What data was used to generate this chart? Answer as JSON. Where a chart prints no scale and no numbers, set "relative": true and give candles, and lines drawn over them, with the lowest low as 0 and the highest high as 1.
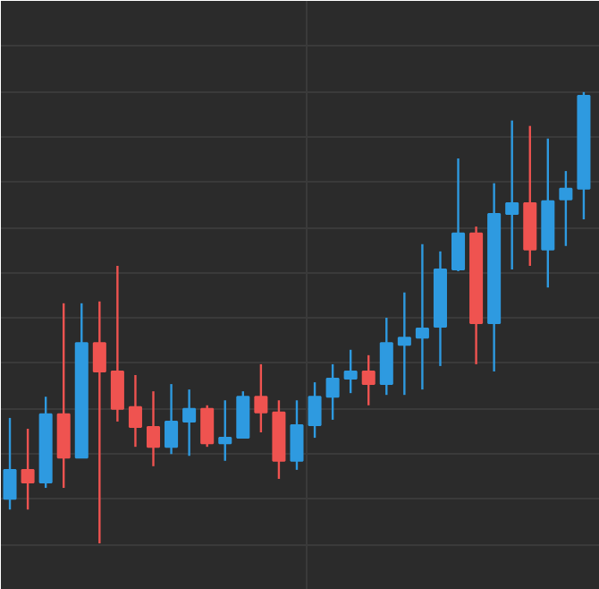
{
  "chart_data": {
    "type": "candlestick",
    "relative": true,
    "grid": true,
    "tick_labels": false,
    "categories": [
      null,
      null,
      null,
      null,
      null,
      null,
      null,
      null,
      null,
      null,
      null,
      null,
      null,
      null,
      null,
      null,
      null,
      null,
      null,
      null,
      null,
      null,
      null,
      null,
      null,
      null,
      null,
      null,
      null,
      null,
      null,
      null,
      null
    ],
    "ohlc": [
      [
        0.099,
        0.278,
        0.075,
        0.163
      ],
      [
        0.163,
        0.254,
        0.075,
        0.135
      ],
      [
        0.135,
        0.325,
        0.123,
        0.286
      ],
      [
        0.286,
        0.532,
        0.123,
        0.19
      ],
      [
        0.19,
        0.532,
        0.19,
        0.444
      ],
      [
        0.444,
        0.536,
        0,
        0.381
      ],
      [
        0.381,
        0.615,
        0.27,
        0.298
      ],
      [
        0.302,
        0.373,
        0.214,
        0.258
      ],
      [
        0.258,
        0.337,
        0.171,
        0.214
      ],
      [
        0.214,
        0.353,
        0.198,
        0.27
      ],
      [
        0.27,
        0.341,
        0.194,
        0.298
      ],
      [
        0.298,
        0.306,
        0.214,
        0.222
      ],
      [
        0.222,
        0.317,
        0.183,
        0.234
      ],
      [
        0.234,
        0.337,
        0.234,
        0.325
      ],
      [
        0.325,
        0.397,
        0.246,
        0.29
      ],
      [
        0.29,
        0.317,
        0.143,
        0.183
      ],
      [
        0.183,
        0.317,
        0.163,
        0.262
      ],
      [
        0.262,
        0.357,
        0.234,
        0.325
      ],
      [
        0.325,
        0.397,
        0.274,
        0.365
      ],
      [
        0.365,
        0.429,
        0.333,
        0.381
      ],
      [
        0.381,
        0.417,
        0.306,
        0.353
      ],
      [
        0.353,
        0.5,
        0.329,
        0.444
      ],
      [
        0.44,
        0.556,
        0.329,
        0.456
      ],
      [
        0.456,
        0.663,
        0.341,
        0.476
      ],
      [
        0.48,
        0.647,
        0.393,
        0.607
      ],
      [
        0.607,
        0.853,
        0.603,
        0.687
      ],
      [
        0.687,
        0.702,
        0.397,
        0.488
      ],
      [
        0.488,
        0.798,
        0.381,
        0.73
      ],
      [
        0.73,
        0.937,
        0.607,
        0.754
      ],
      [
        0.754,
        0.925,
        0.615,
        0.651
      ],
      [
        0.651,
        0.897,
        0.567,
        0.758
      ],
      [
        0.762,
        0.825,
        0.659,
        0.786
      ],
      [
        0.786,
        1,
        0.718,
        0.992
      ]
    ],
    "colors": [
      "#2e9ae0",
      "#ef5350",
      "#2e9ae0",
      "#ef5350",
      "#2e9ae0",
      "#ef5350",
      "#ef5350",
      "#ef5350",
      "#ef5350",
      "#2e9ae0",
      "#2e9ae0",
      "#ef5350",
      "#2e9ae0",
      "#2e9ae0",
      "#ef5350",
      "#ef5350",
      "#2e9ae0",
      "#2e9ae0",
      "#2e9ae0",
      "#2e9ae0",
      "#ef5350",
      "#2e9ae0",
      "#2e9ae0",
      "#2e9ae0",
      "#2e9ae0",
      "#2e9ae0",
      "#ef5350",
      "#2e9ae0",
      "#2e9ae0",
      "#ef5350",
      "#2e9ae0",
      "#2e9ae0",
      "#2e9ae0"
    ]
  }
}
